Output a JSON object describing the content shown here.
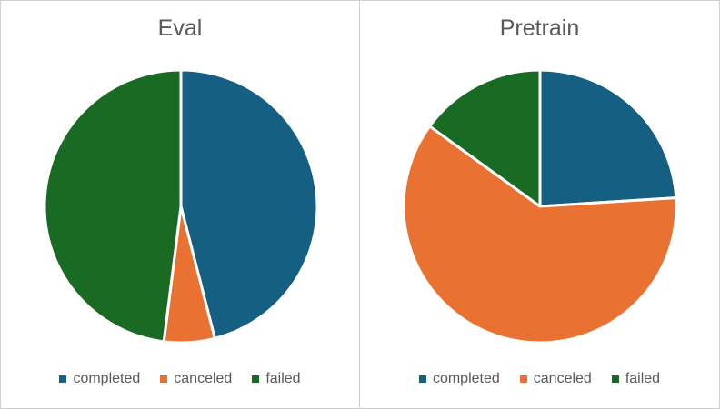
{
  "chart_data": [
    {
      "type": "pie",
      "title": "Eval",
      "categories": [
        "completed",
        "canceled",
        "failed"
      ],
      "values": [
        46,
        6,
        48
      ],
      "colors": [
        "#156082",
        "#E97132",
        "#196B24"
      ],
      "legend_position": "bottom"
    },
    {
      "type": "pie",
      "title": "Pretrain",
      "categories": [
        "completed",
        "canceled",
        "failed"
      ],
      "values": [
        24,
        61,
        15
      ],
      "colors": [
        "#156082",
        "#E97132",
        "#196B24"
      ],
      "legend_position": "bottom"
    }
  ]
}
